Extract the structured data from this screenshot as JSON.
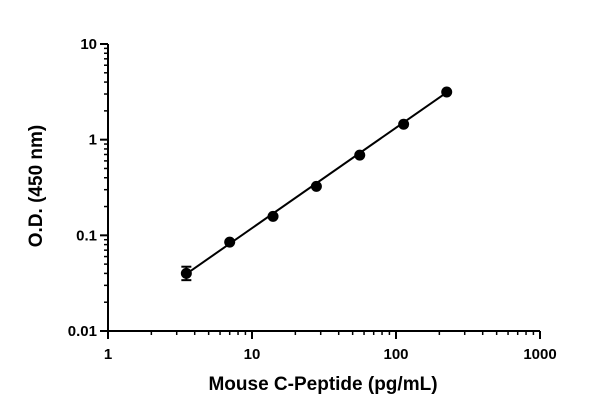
{
  "chart_data": {
    "type": "scatter",
    "title": "",
    "xlabel": "Mouse C-Peptide (pg/mL)",
    "ylabel": "O.D. (450 nm)",
    "x_scale": "log",
    "y_scale": "log",
    "xlim": [
      1,
      1000
    ],
    "ylim": [
      0.01,
      10
    ],
    "x_ticks": [
      {
        "value": 1,
        "label": "1"
      },
      {
        "value": 10,
        "label": "10"
      },
      {
        "value": 100,
        "label": "100"
      },
      {
        "value": 1000,
        "label": "1000"
      }
    ],
    "y_ticks": [
      {
        "value": 0.01,
        "label": "0.01"
      },
      {
        "value": 0.1,
        "label": "0.1"
      },
      {
        "value": 1,
        "label": "1"
      },
      {
        "value": 10,
        "label": "10"
      }
    ],
    "grid": false,
    "points": [
      {
        "x": 3.5,
        "y": 0.04,
        "y_err_low": 0.034,
        "y_err_high": 0.047
      },
      {
        "x": 7,
        "y": 0.085
      },
      {
        "x": 14,
        "y": 0.158
      },
      {
        "x": 28,
        "y": 0.325
      },
      {
        "x": 56,
        "y": 0.69
      },
      {
        "x": 113,
        "y": 1.45
      },
      {
        "x": 225,
        "y": 3.15
      }
    ],
    "fit_line": {
      "x": [
        3.5,
        225
      ],
      "y": [
        0.0395,
        3.12
      ]
    },
    "marker_color": "#000000",
    "line_color": "#000000"
  }
}
